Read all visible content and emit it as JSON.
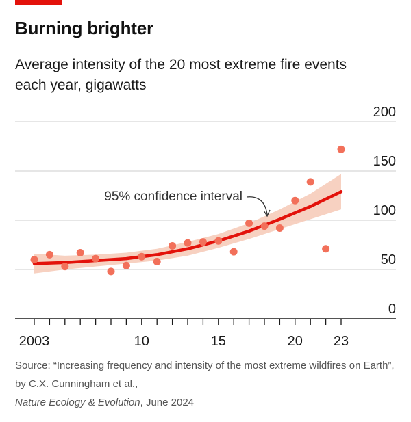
{
  "header": {
    "title": "Burning brighter",
    "subtitle": "Average intensity of the 20 most extreme fire events each year, gigawatts"
  },
  "source": {
    "text": "Source: “Increasing frequency and intensity of the most extreme wildfires on Earth”, by C.X. Cunningham et al.,",
    "journal": "Nature Ecology & Evolution",
    "date": ", June 2024"
  },
  "colors": {
    "accent": "#e3120b",
    "trend_line": "#e3120b",
    "confidence_band": "#f6c9b6",
    "points": "#f2705a",
    "grid": "#d7d7d7"
  },
  "chart_data": {
    "type": "scatter",
    "x": [
      2003,
      2004,
      2005,
      2006,
      2007,
      2008,
      2009,
      2010,
      2011,
      2012,
      2013,
      2014,
      2015,
      2016,
      2017,
      2018,
      2019,
      2020,
      2021,
      2022,
      2023
    ],
    "series": [
      {
        "values": [
          60,
          65,
          53,
          67,
          61,
          48,
          54,
          63,
          58,
          74,
          77,
          78,
          79,
          68,
          97,
          94,
          92,
          120,
          139,
          71,
          172
        ]
      }
    ],
    "trend": {
      "label": "95% confidence interval",
      "x": [
        2003,
        2005,
        2007,
        2009,
        2011,
        2013,
        2015,
        2017,
        2019,
        2021,
        2023
      ],
      "fit": [
        56,
        57,
        59,
        61,
        65,
        71,
        79,
        89,
        101,
        114,
        129
      ],
      "lower": [
        46,
        50,
        53,
        56,
        59,
        64,
        72,
        81,
        91,
        101,
        111
      ],
      "upper": [
        66,
        64,
        65,
        67,
        71,
        78,
        86,
        97,
        111,
        127,
        147
      ]
    },
    "xticks": [
      2003,
      2004,
      2005,
      2006,
      2007,
      2008,
      2009,
      2010,
      2011,
      2012,
      2013,
      2014,
      2015,
      2016,
      2017,
      2018,
      2019,
      2020,
      2021,
      2022,
      2023
    ],
    "xtick_labels": [
      {
        "x": 2003,
        "label": "2003"
      },
      {
        "x": 2010,
        "label": "10"
      },
      {
        "x": 2015,
        "label": "15"
      },
      {
        "x": 2020,
        "label": "20"
      },
      {
        "x": 2023,
        "label": "23"
      }
    ],
    "yticks": [
      0,
      50,
      100,
      150,
      200
    ],
    "ylim": [
      0,
      200
    ],
    "xlim": [
      2003,
      2023
    ],
    "grid": true,
    "xlabel": "",
    "ylabel": ""
  }
}
